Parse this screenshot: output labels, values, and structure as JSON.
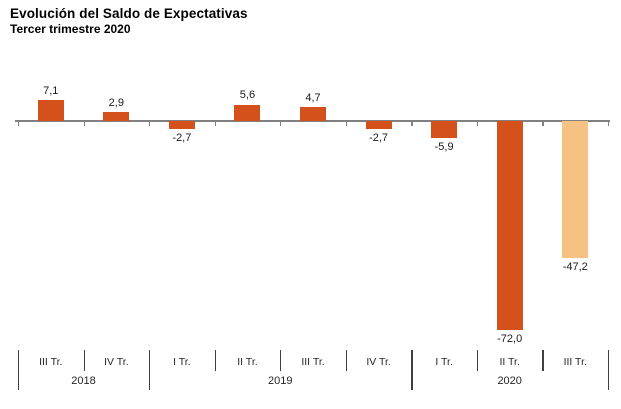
{
  "chart_data": {
    "type": "bar",
    "title": "Evolución del Saldo de Expectativas",
    "subtitle": "Tercer trimestre 2020",
    "categories": [
      "III Tr. 2018",
      "IV Tr. 2018",
      "I Tr. 2019",
      "II Tr. 2019",
      "III Tr. 2019",
      "IV Tr. 2019",
      "I Tr. 2020",
      "II Tr. 2020",
      "III Tr. 2020"
    ],
    "quarter_labels": [
      "III Tr.",
      "IV Tr.",
      "I Tr.",
      "II Tr.",
      "III Tr.",
      "IV Tr.",
      "I Tr.",
      "II Tr.",
      "III Tr."
    ],
    "year_groups": [
      {
        "label": "2018",
        "span": 2
      },
      {
        "label": "2019",
        "span": 4
      },
      {
        "label": "2020",
        "span": 3
      }
    ],
    "values": [
      7.1,
      2.9,
      -2.7,
      5.6,
      4.7,
      -2.7,
      -5.9,
      -72.0,
      -47.2
    ],
    "value_labels": [
      "7,1",
      "2,9",
      "-2,7",
      "5,6",
      "4,7",
      "-2,7",
      "-5,9",
      "-72,0",
      "-47,2"
    ],
    "highlight_index": 8,
    "grid": false,
    "legend": false,
    "ylim": [
      -75,
      10
    ],
    "colors": {
      "bar": "#D5511B",
      "highlight_bar": "#F5C284",
      "axis": "#808080",
      "separator": "#3F3F3F",
      "label_text": "#1A1A1A"
    }
  }
}
